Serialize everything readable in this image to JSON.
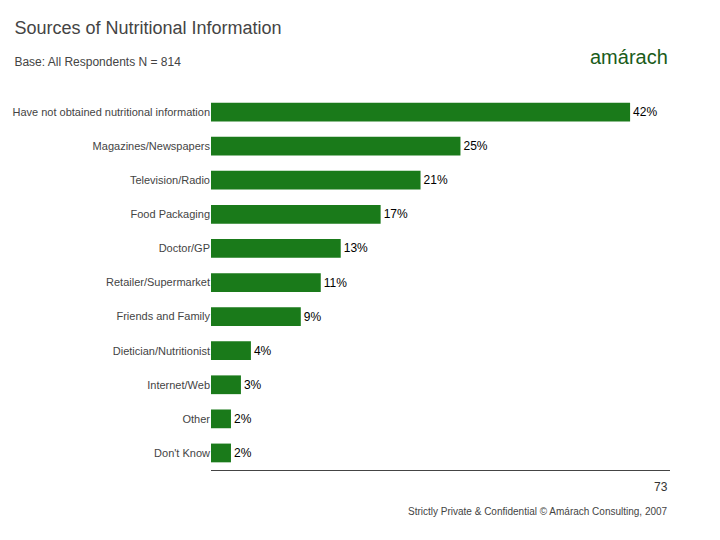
{
  "chart_data": {
    "type": "bar",
    "orientation": "horizontal",
    "title": "Sources of Nutritional Information",
    "subtitle": "Base: All Respondents N = 814",
    "categories": [
      "Have not obtained nutritional information",
      "Magazines/Newspapers",
      "Television/Radio",
      "Food Packaging",
      "Doctor/GP",
      "Retailer/Supermarket",
      "Friends and Family",
      "Dietician/Nutritionist",
      "Internet/Web",
      "Other",
      "Don't Know"
    ],
    "values": [
      42,
      25,
      21,
      17,
      13,
      11,
      9,
      4,
      3,
      2,
      2
    ],
    "value_labels": [
      "42%",
      "25%",
      "21%",
      "17%",
      "13%",
      "11%",
      "9%",
      "4%",
      "3%",
      "2%",
      "2%"
    ],
    "data_labels": true,
    "color": "#1a7a1a",
    "xlim": [
      0,
      46
    ],
    "tick_labels": "y",
    "grid": false,
    "annotations": [
      "amárach",
      "Strictly Private & Confidential © Amárach Consulting, 2007",
      "73"
    ]
  }
}
